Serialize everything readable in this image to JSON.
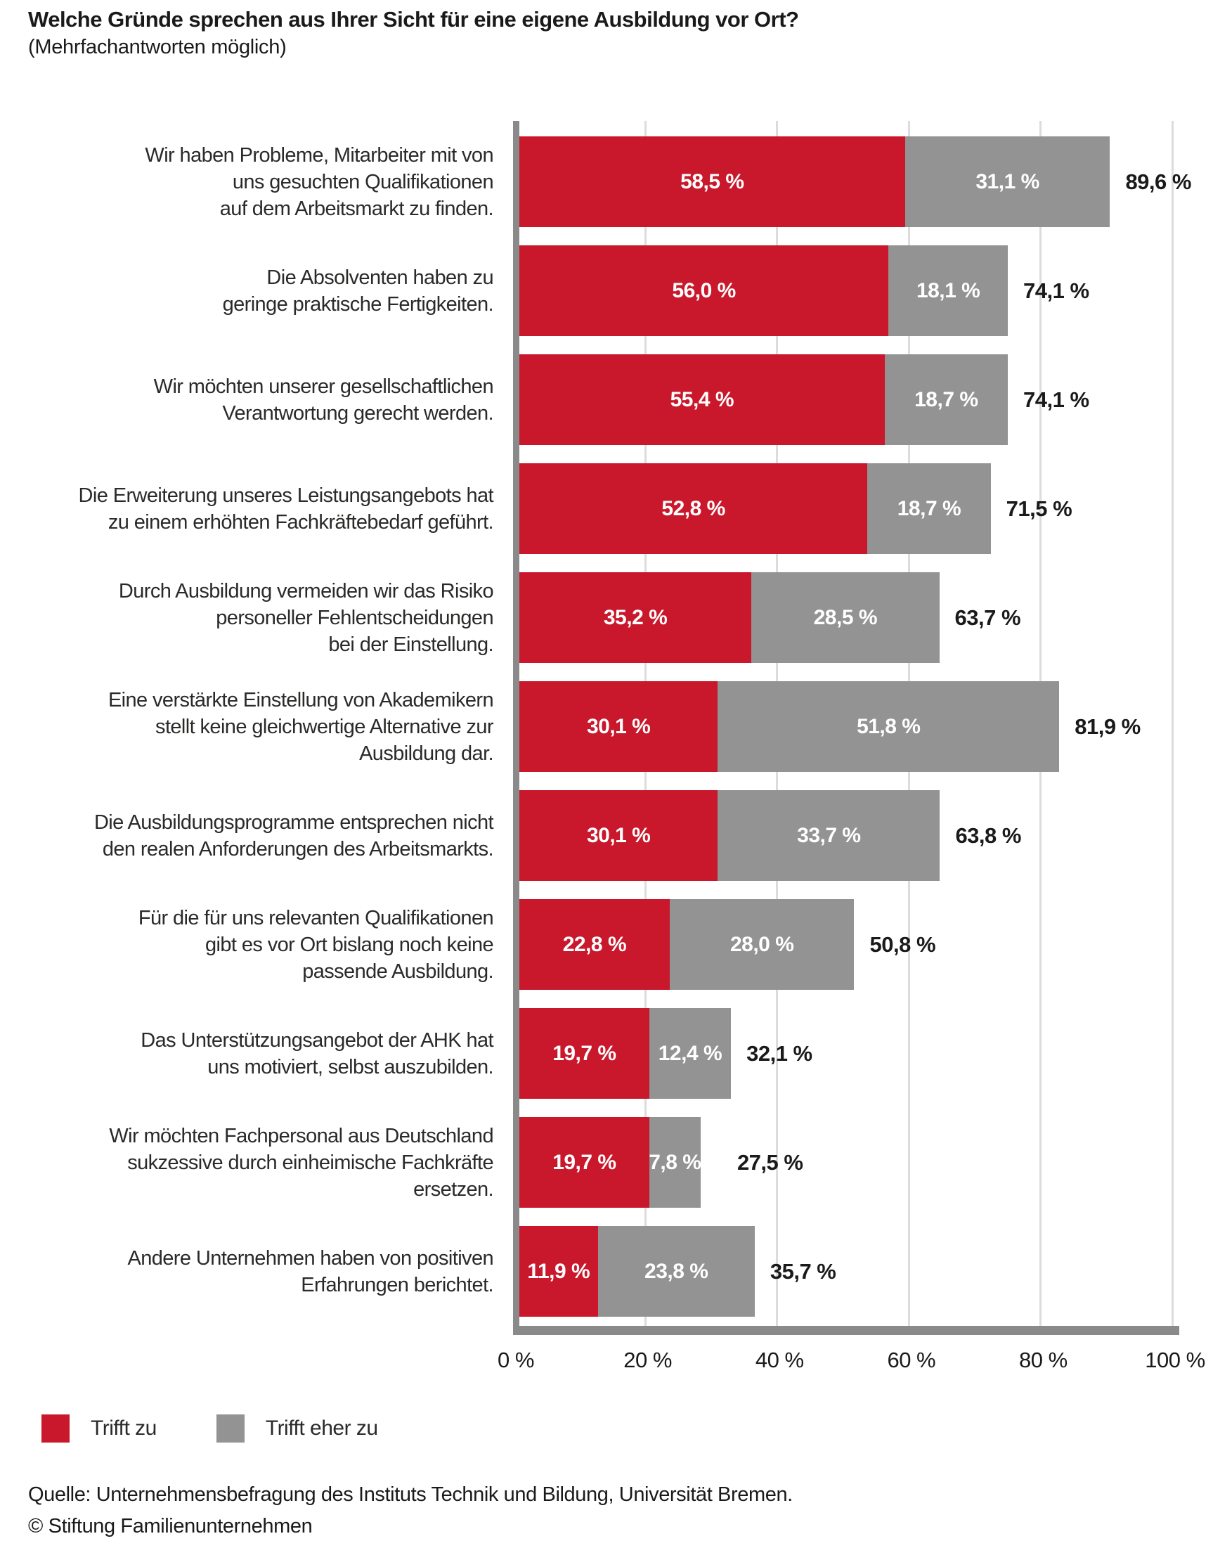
{
  "title": "Welche Gründe sprechen aus Ihrer Sicht für eine eigene Ausbildung vor Ort?",
  "subtitle": "(Mehrfachantworten möglich)",
  "colors": {
    "trifft_zu": "#c9182b",
    "trifft_eher_zu": "#939393",
    "axis": "#8a8a8a",
    "gridline": "#dcdcdc",
    "value_text": "#ffffff",
    "total_text": "#1a1a1a"
  },
  "chart_data": {
    "type": "bar",
    "orientation": "horizontal",
    "stacked": true,
    "grid": true,
    "legend_position": "bottom-left",
    "title": "Welche Gründe sprechen aus Ihrer Sicht für eine eigene Ausbildung vor Ort? (Mehrfachantworten möglich)",
    "xlabel": "",
    "ylabel": "",
    "x_axis": {
      "min": 0,
      "max": 100,
      "ticks": [
        {
          "value": 0,
          "label": "0 %"
        },
        {
          "value": 20,
          "label": "20 %"
        },
        {
          "value": 40,
          "label": "40 %"
        },
        {
          "value": 60,
          "label": "60 %"
        },
        {
          "value": 80,
          "label": "80 %"
        },
        {
          "value": 100,
          "label": "100 %"
        }
      ]
    },
    "categories": [
      "Wir haben Probleme, Mitarbeiter mit von uns gesuchten Qualifikationen auf dem Arbeitsmarkt zu finden.",
      "Die Absolventen haben zu geringe praktische Fertigkeiten.",
      "Wir möchten unserer gesellschaftlichen Verantwortung gerecht werden.",
      "Die Erweiterung unseres Leistungsangebots hat zu einem erhöhten Fachkräftebedarf geführt.",
      "Durch Ausbildung vermeiden wir das Risiko personeller Fehlentscheidungen bei der Einstellung.",
      "Eine verstärkte Einstellung von Akademikern stellt keine gleichwertige Alternative zur Ausbildung dar.",
      "Die Ausbildungsprogramme entsprechen nicht den realen Anforderungen des Arbeitsmarkts.",
      "Für die für uns relevanten Qualifikationen gibt es vor Ort bislang noch keine passende Ausbildung.",
      "Das Unterstützungsangebot der AHK hat uns motiviert, selbst auszubilden.",
      "Wir möchten Fachpersonal aus Deutschland sukzessive durch einheimische Fachkräfte ersetzen.",
      "Andere Unternehmen haben von positiven Erfahrungen berichtet."
    ],
    "category_lines": [
      [
        "Wir haben Probleme, Mitarbeiter mit von",
        "uns gesuchten Qualifikationen",
        "auf dem Arbeitsmarkt zu finden."
      ],
      [
        "Die Absolventen haben zu",
        "geringe praktische Fertigkeiten."
      ],
      [
        "Wir möchten unserer gesellschaftlichen",
        "Verantwortung gerecht werden."
      ],
      [
        "Die Erweiterung unseres Leistungsangebots hat",
        "zu einem erhöhten Fachkräftebedarf geführt."
      ],
      [
        "Durch Ausbildung vermeiden wir das Risiko",
        "personeller Fehlentscheidungen",
        "bei der Einstellung."
      ],
      [
        "Eine verstärkte Einstellung von Akademikern",
        "stellt keine gleichwertige Alternative zur",
        "Ausbildung dar."
      ],
      [
        "Die Ausbildungsprogramme entsprechen nicht",
        "den realen Anforderungen des Arbeitsmarkts."
      ],
      [
        "Für die für uns relevanten Qualifikationen",
        "gibt es vor Ort bislang noch keine",
        "passende Ausbildung."
      ],
      [
        "Das Unterstützungsangebot der AHK hat",
        "uns motiviert, selbst auszubilden."
      ],
      [
        "Wir möchten Fachpersonal aus Deutschland",
        "sukzessive durch einheimische Fachkräfte",
        "ersetzen."
      ],
      [
        "Andere Unternehmen haben von positiven",
        "Erfahrungen berichtet."
      ]
    ],
    "series": [
      {
        "name": "Trifft zu",
        "color": "#c9182b",
        "values": [
          58.5,
          56.0,
          55.4,
          52.8,
          35.2,
          30.1,
          30.1,
          22.8,
          19.7,
          19.7,
          11.9
        ],
        "labels": [
          "58,5 %",
          "56,0 %",
          "55,4 %",
          "52,8 %",
          "35,2 %",
          "30,1 %",
          "30,1 %",
          "22,8 %",
          "19,7 %",
          "19,7 %",
          "11,9 %"
        ]
      },
      {
        "name": "Trifft eher zu",
        "color": "#939393",
        "values": [
          31.1,
          18.1,
          18.7,
          18.7,
          28.5,
          51.8,
          33.7,
          28.0,
          12.4,
          7.8,
          23.8
        ],
        "labels": [
          "31,1 %",
          "18,1 %",
          "18,7 %",
          "18,7 %",
          "28,5 %",
          "51,8 %",
          "33,7 %",
          "28,0 %",
          "12,4 %",
          "7,8 %",
          "23,8 %"
        ]
      }
    ],
    "totals": {
      "values": [
        89.6,
        74.1,
        74.1,
        71.5,
        63.7,
        81.9,
        63.8,
        50.8,
        32.1,
        27.5,
        35.7
      ],
      "labels": [
        "89,6 %",
        "74,1 %",
        "74,1 %",
        "71,5 %",
        "63,7 %",
        "81,9 %",
        "63,8 %",
        "50,8 %",
        "32,1 %",
        "27,5 %",
        "35,7 %"
      ]
    }
  },
  "legend": {
    "items": [
      {
        "label": "Trifft zu",
        "color": "#c9182b"
      },
      {
        "label": "Trifft eher zu",
        "color": "#939393"
      }
    ]
  },
  "footer": {
    "source": "Quelle: Unternehmensbefragung des Instituts Technik und Bildung, Universität Bremen.",
    "copyright": "© Stiftung Familienunternehmen"
  }
}
